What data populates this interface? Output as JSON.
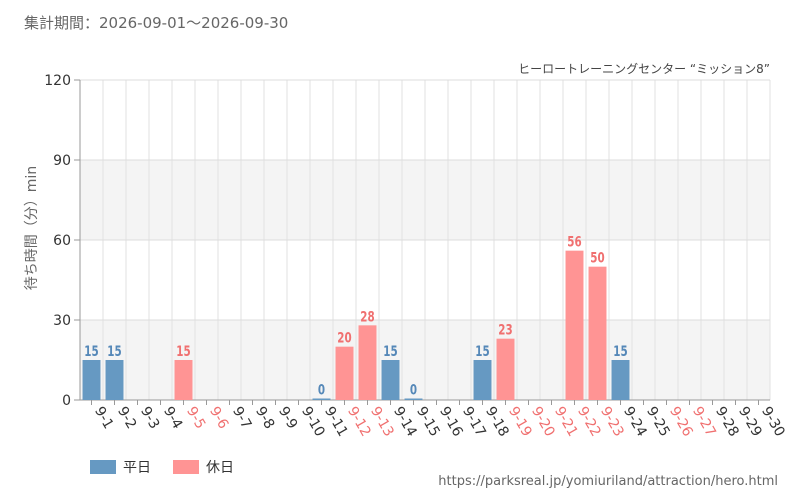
{
  "header": {
    "period": "集計期間：2026-09-01～2026-09-30",
    "attraction": "ヒーロートレーニングセンター “ミッション8”"
  },
  "colors": {
    "weekday": "#6699c2",
    "holiday": "#ff9494",
    "weekday_label": "#5588b8",
    "holiday_label": "#f07070"
  },
  "legend": {
    "weekday": "平日",
    "holiday": "休日"
  },
  "source": "https://parksreal.jp/yomiuriland/attraction/hero.html",
  "chart_data": {
    "type": "bar",
    "title": "",
    "xlabel": "",
    "ylabel": "待ち時間（分）min",
    "ylim": [
      0,
      120
    ],
    "yticks": [
      "0",
      "30",
      "60",
      "90",
      "120"
    ],
    "grid": true,
    "legend_position": "bottom-left",
    "categories": [
      "9-1",
      "9-2",
      "9-3",
      "9-4",
      "9-5",
      "9-6",
      "9-7",
      "9-8",
      "9-9",
      "9-10",
      "9-11",
      "9-12",
      "9-13",
      "9-14",
      "9-15",
      "9-16",
      "9-17",
      "9-18",
      "9-19",
      "9-20",
      "9-21",
      "9-22",
      "9-23",
      "9-24",
      "9-25",
      "9-26",
      "9-27",
      "9-28",
      "9-29",
      "9-30"
    ],
    "day_type": [
      "weekday",
      "weekday",
      "weekday",
      "weekday",
      "holiday",
      "holiday",
      "weekday",
      "weekday",
      "weekday",
      "weekday",
      "weekday",
      "holiday",
      "holiday",
      "weekday",
      "weekday",
      "weekday",
      "weekday",
      "weekday",
      "holiday",
      "holiday",
      "holiday",
      "holiday",
      "holiday",
      "weekday",
      "weekday",
      "holiday",
      "holiday",
      "weekday",
      "weekday",
      "weekday"
    ],
    "values": [
      15,
      15,
      null,
      null,
      15,
      null,
      null,
      null,
      null,
      null,
      0,
      20,
      28,
      15,
      0,
      null,
      null,
      15,
      23,
      null,
      null,
      56,
      50,
      15,
      null,
      null,
      null,
      null,
      null,
      null
    ]
  }
}
